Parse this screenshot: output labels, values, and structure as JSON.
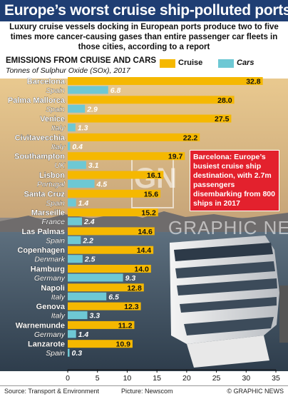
{
  "header": {
    "title": "Europe’s worst cruise ship-polluted ports",
    "subtitle": "Luxury cruise vessels docking in European ports produce two to five times more cancer-causing gases than entire passenger car fleets in those cities, according to a report"
  },
  "chart_data": {
    "type": "bar",
    "orientation": "horizontal",
    "title": "EMISSIONS FROM CRUISE AND CARS",
    "units": "Tonnes of Sulphur Oxide (SOx), 2017",
    "categories": [
      "Barcelona",
      "Palma Mallorca",
      "Venice",
      "Civitavecchia",
      "Southampton",
      "Lisbon",
      "Santa Cruz",
      "Marseille",
      "Las Palmas",
      "Copenhagen",
      "Hamburg",
      "Napoli",
      "Genova",
      "Warnemunde",
      "Lanzarote"
    ],
    "countries": [
      "Spain",
      "Spain",
      "Italy",
      "Italy",
      "UK",
      "Portugal",
      "Spain",
      "France",
      "Spain",
      "Denmark",
      "Germany",
      "Italy",
      "Italy",
      "Germany",
      "Spain"
    ],
    "series": [
      {
        "name": "Cruise",
        "color": "#f5b800",
        "values": [
          32.8,
          28.0,
          27.5,
          22.2,
          19.7,
          16.1,
          15.6,
          15.2,
          14.6,
          14.4,
          14.0,
          12.8,
          12.3,
          11.2,
          10.9
        ],
        "labels": [
          "32.8",
          "28.0",
          "27.5",
          "22.2",
          "19.7",
          "16.1",
          "15.6",
          "15.2",
          "14.6",
          "14.4",
          "14.0",
          "12.8",
          "12.3",
          "11.2",
          "10.9"
        ]
      },
      {
        "name": "Cars",
        "color": "#6ec8d4",
        "values": [
          6.8,
          2.9,
          1.3,
          0.4,
          3.1,
          4.5,
          1.4,
          2.4,
          2.2,
          2.5,
          9.3,
          6.5,
          3.3,
          1.4,
          0.3
        ],
        "labels": [
          "6.8",
          "2.9",
          "1.3",
          "0.4",
          "3.1",
          "4.5",
          "1.4",
          "2.4",
          "2.2",
          "2.5",
          "9.3",
          "6.5",
          "3.3",
          "1.4",
          "0.3"
        ]
      }
    ],
    "xlim": [
      0,
      35
    ],
    "xticks": [
      "0",
      "5",
      "10",
      "15",
      "20",
      "25",
      "30",
      "35"
    ],
    "legend": "top-right",
    "grid": false
  },
  "callout": {
    "text": "Barcelona: Europe’s busiest cruise ship destination, with 2.7m passengers disembarking from 800 ships in 2017"
  },
  "watermark": {
    "letters": "GN",
    "text": "GRAPHIC NEWS"
  },
  "footer": {
    "source": "Source: Transport & Environment",
    "picture": "Picture: Newscom",
    "copyright": "© GRAPHIC NEWS"
  },
  "colors": {
    "title_bar": "#1f3e73",
    "cruise": "#f5b800",
    "cars": "#6ec8d4",
    "callout": "#e3212d"
  }
}
